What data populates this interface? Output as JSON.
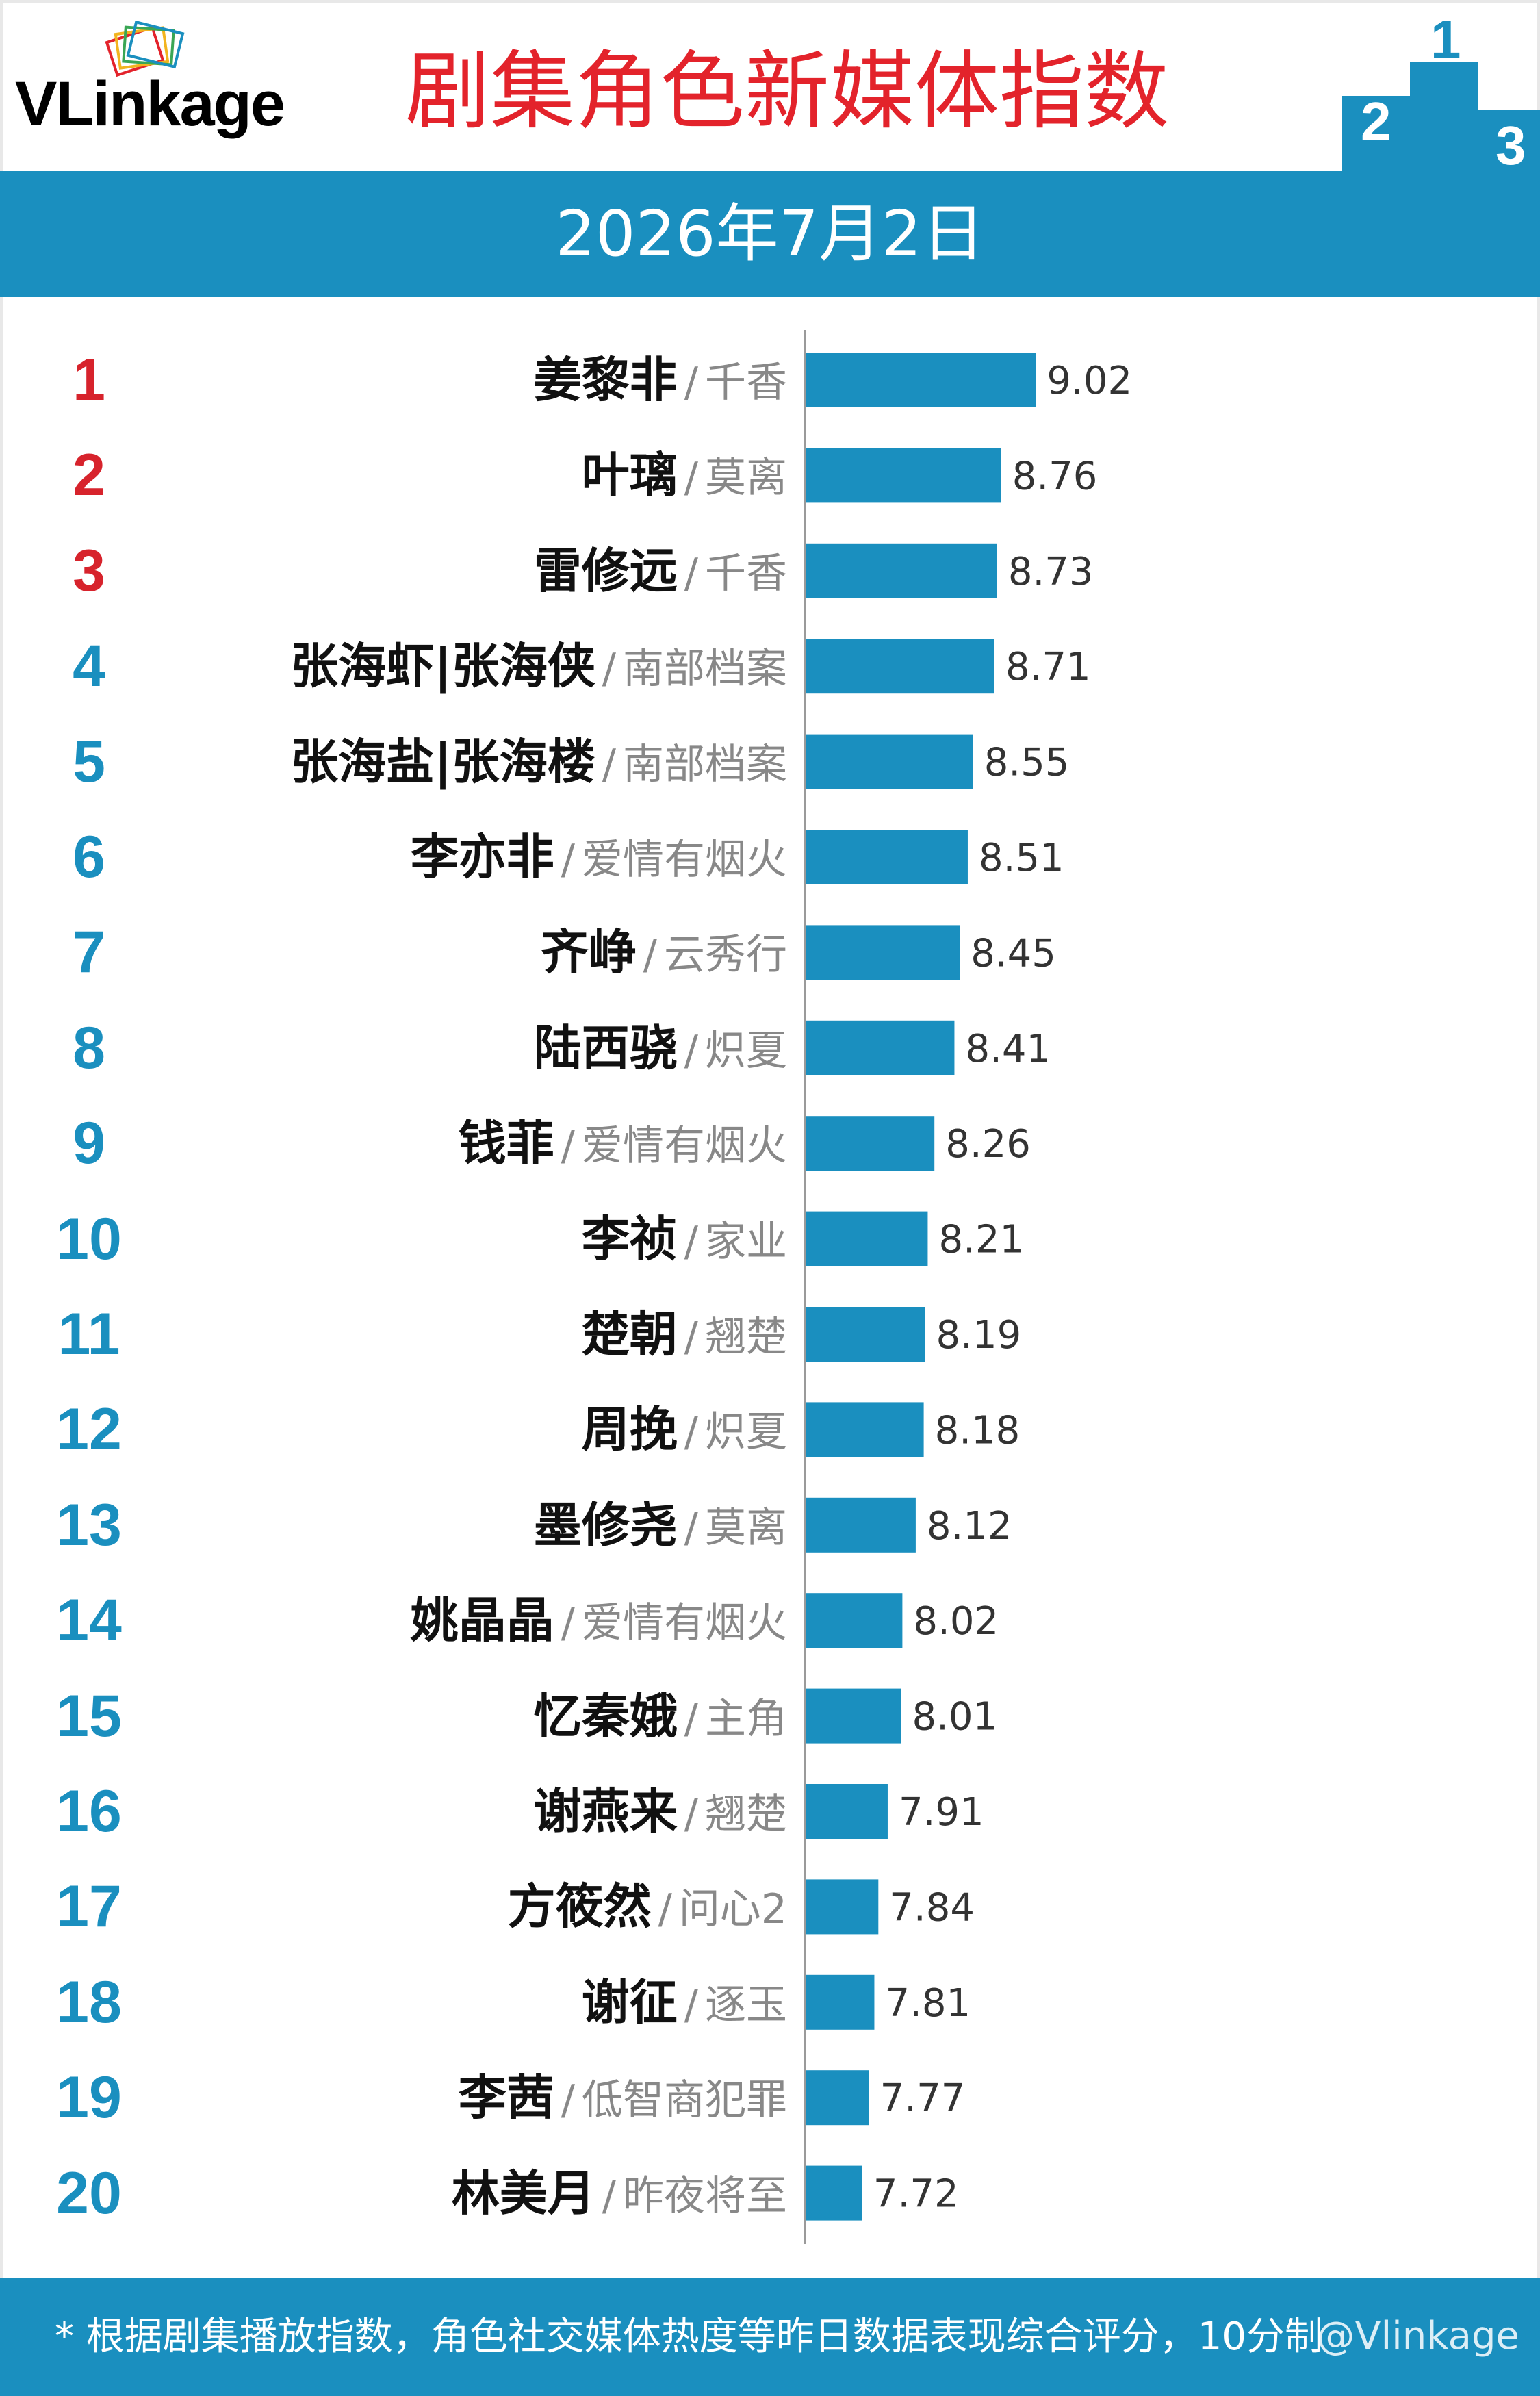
{
  "header": {
    "logo_text": "VLinkage",
    "title": "剧集角色新媒体指数",
    "date": "2026年7月2日"
  },
  "colors": {
    "bar": "#1a8fbf",
    "top_rank": "#d7232c",
    "rank": "#1a8fbf",
    "title": "#e3232b"
  },
  "chart_data": {
    "type": "bar",
    "orientation": "horizontal",
    "categories": [
      "姜黎非 / 千香",
      "叶璃 / 莫离",
      "雷修远 / 千香",
      "张海虾|张海侠 / 南部档案",
      "张海盐|张海楼 / 南部档案",
      "李亦非 / 爱情有烟火",
      "齐峥 / 云秀行",
      "陆西骁 / 炽夏",
      "钱菲 / 爱情有烟火",
      "李祯 / 家业",
      "楚朝 / 翘楚",
      "周挽 / 炽夏",
      "墨修尧 / 莫离",
      "姚晶晶 / 爱情有烟火",
      "忆秦娥 / 主角",
      "谢燕来 / 翘楚",
      "方筱然 / 问心2",
      "谢征 / 逐玉",
      "李茜 / 低智商犯罪",
      "林美月 / 昨夜将至"
    ],
    "values": [
      9.02,
      8.76,
      8.73,
      8.71,
      8.55,
      8.51,
      8.45,
      8.41,
      8.26,
      8.21,
      8.19,
      8.18,
      8.12,
      8.02,
      8.01,
      7.91,
      7.84,
      7.81,
      7.77,
      7.72
    ],
    "title": "剧集角色新媒体指数",
    "xlabel": "",
    "ylabel": "",
    "grid": false,
    "legend": "none"
  },
  "rows": [
    {
      "rank": "1",
      "name": "姜黎非",
      "drama": "千香",
      "value": "9.02"
    },
    {
      "rank": "2",
      "name": "叶璃",
      "drama": "莫离",
      "value": "8.76"
    },
    {
      "rank": "3",
      "name": "雷修远",
      "drama": "千香",
      "value": "8.73"
    },
    {
      "rank": "4",
      "name": "张海虾|张海侠",
      "drama": "南部档案",
      "value": "8.71"
    },
    {
      "rank": "5",
      "name": "张海盐|张海楼",
      "drama": "南部档案",
      "value": "8.55"
    },
    {
      "rank": "6",
      "name": "李亦非",
      "drama": "爱情有烟火",
      "value": "8.51"
    },
    {
      "rank": "7",
      "name": "齐峥",
      "drama": "云秀行",
      "value": "8.45"
    },
    {
      "rank": "8",
      "name": "陆西骁",
      "drama": "炽夏",
      "value": "8.41"
    },
    {
      "rank": "9",
      "name": "钱菲",
      "drama": "爱情有烟火",
      "value": "8.26"
    },
    {
      "rank": "10",
      "name": "李祯",
      "drama": "家业",
      "value": "8.21"
    },
    {
      "rank": "11",
      "name": "楚朝",
      "drama": "翘楚",
      "value": "8.19"
    },
    {
      "rank": "12",
      "name": "周挽",
      "drama": "炽夏",
      "value": "8.18"
    },
    {
      "rank": "13",
      "name": "墨修尧",
      "drama": "莫离",
      "value": "8.12"
    },
    {
      "rank": "14",
      "name": "姚晶晶",
      "drama": "爱情有烟火",
      "value": "8.02"
    },
    {
      "rank": "15",
      "name": "忆秦娥",
      "drama": "主角",
      "value": "8.01"
    },
    {
      "rank": "16",
      "name": "谢燕来",
      "drama": "翘楚",
      "value": "7.91"
    },
    {
      "rank": "17",
      "name": "方筱然",
      "drama": "问心2",
      "value": "7.84"
    },
    {
      "rank": "18",
      "name": "谢征",
      "drama": "逐玉",
      "value": "7.81"
    },
    {
      "rank": "19",
      "name": "李茜",
      "drama": "低智商犯罪",
      "value": "7.77"
    },
    {
      "rank": "20",
      "name": "林美月",
      "drama": "昨夜将至",
      "value": "7.72"
    }
  ],
  "footer": {
    "note": "* 根据剧集播放指数，角色社交媒体热度等昨日数据表现综合评分，10分制",
    "watermark": "@Vlinkage"
  }
}
